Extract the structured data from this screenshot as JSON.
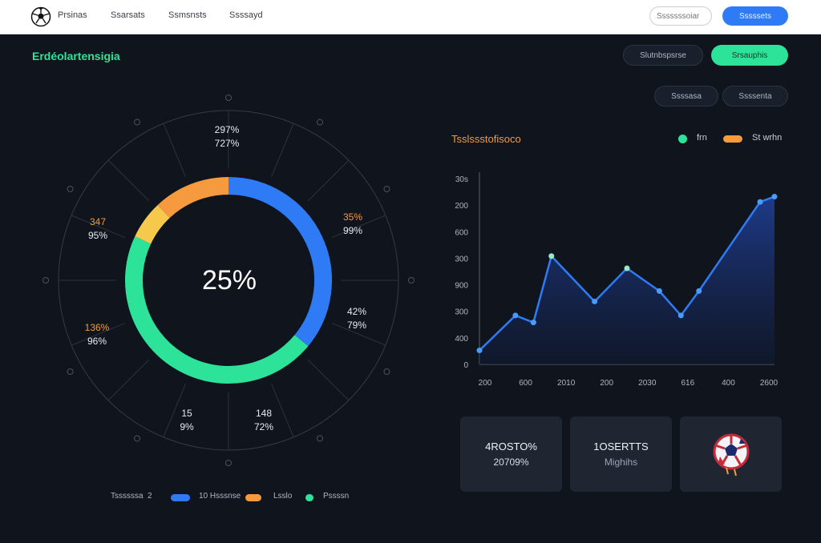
{
  "nav": {
    "items": [
      "Prsinas",
      "Ssarsats",
      "Ssmsnsts",
      "Ssssayd"
    ],
    "search_placeholder": "Sssssssoiar",
    "primary_button": "Sssssets"
  },
  "header": {
    "title": "Erdéolartensigia",
    "buttons": [
      "Slutnbspsrse",
      "Srsauphis"
    ],
    "filters": [
      "Ssssasa",
      "Ssssenta"
    ]
  },
  "donut": {
    "center": "25%",
    "segments": [
      {
        "name": "blue",
        "fraction": 0.36,
        "color": "#2f7bf5"
      },
      {
        "name": "green",
        "fraction": 0.46,
        "color": "#2de39a"
      },
      {
        "name": "yellow",
        "fraction": 0.06,
        "color": "#f6c84b"
      },
      {
        "name": "orange",
        "fraction": 0.12,
        "color": "#f59a3e"
      }
    ],
    "labels": [
      {
        "top": "297%",
        "bottom": "727%"
      },
      {
        "top": "35%",
        "bottom": "99%"
      },
      {
        "top": "42%",
        "bottom": "79%"
      },
      {
        "top": "148",
        "bottom": "72%"
      },
      {
        "top": "15",
        "bottom": "9%"
      },
      {
        "top": "136%",
        "bottom": "96%"
      },
      {
        "top": "347",
        "bottom": "95%"
      }
    ]
  },
  "legend": {
    "prefix": "Tssssssa",
    "prefix_number": "2",
    "items": [
      {
        "label": "10 Hsssnse",
        "color": "#2f7bf5"
      },
      {
        "label": "Lsslo",
        "color": "#f59a3e"
      },
      {
        "label": "Pssssn",
        "color": "#2de39a"
      }
    ]
  },
  "chart_data": {
    "type": "area",
    "title": "Tsslssstofisoco",
    "legend": [
      {
        "name": "frn",
        "color": "#2de39a"
      },
      {
        "name": "St wrhn",
        "color": "#f59a3e"
      }
    ],
    "y_tick_labels": [
      "30s",
      "200",
      "600",
      "300",
      "900",
      "300",
      "400",
      "0"
    ],
    "x_tick_labels": [
      "200",
      "600",
      "2010",
      "200",
      "2030",
      "616",
      "400",
      "2600"
    ],
    "x": [
      0,
      1,
      1.5,
      2,
      3.2,
      4.1,
      5,
      5.6,
      6.1,
      7.8,
      8.2
    ],
    "values": [
      0.08,
      0.28,
      0.24,
      0.62,
      0.36,
      0.55,
      0.42,
      0.28,
      0.42,
      0.93,
      0.96
    ],
    "xlim": [
      0,
      8.2
    ],
    "ylim": [
      0,
      1.1
    ],
    "grid": false,
    "line_color": "#2f7bf5",
    "fill_color": "#1d3576"
  },
  "cards": [
    {
      "line1": "4ROSTO%",
      "line2": "20709%"
    },
    {
      "line1": "1OSERTTS",
      "line2": "Mighihs"
    },
    {
      "icon": "soccer-ball-icon"
    }
  ]
}
